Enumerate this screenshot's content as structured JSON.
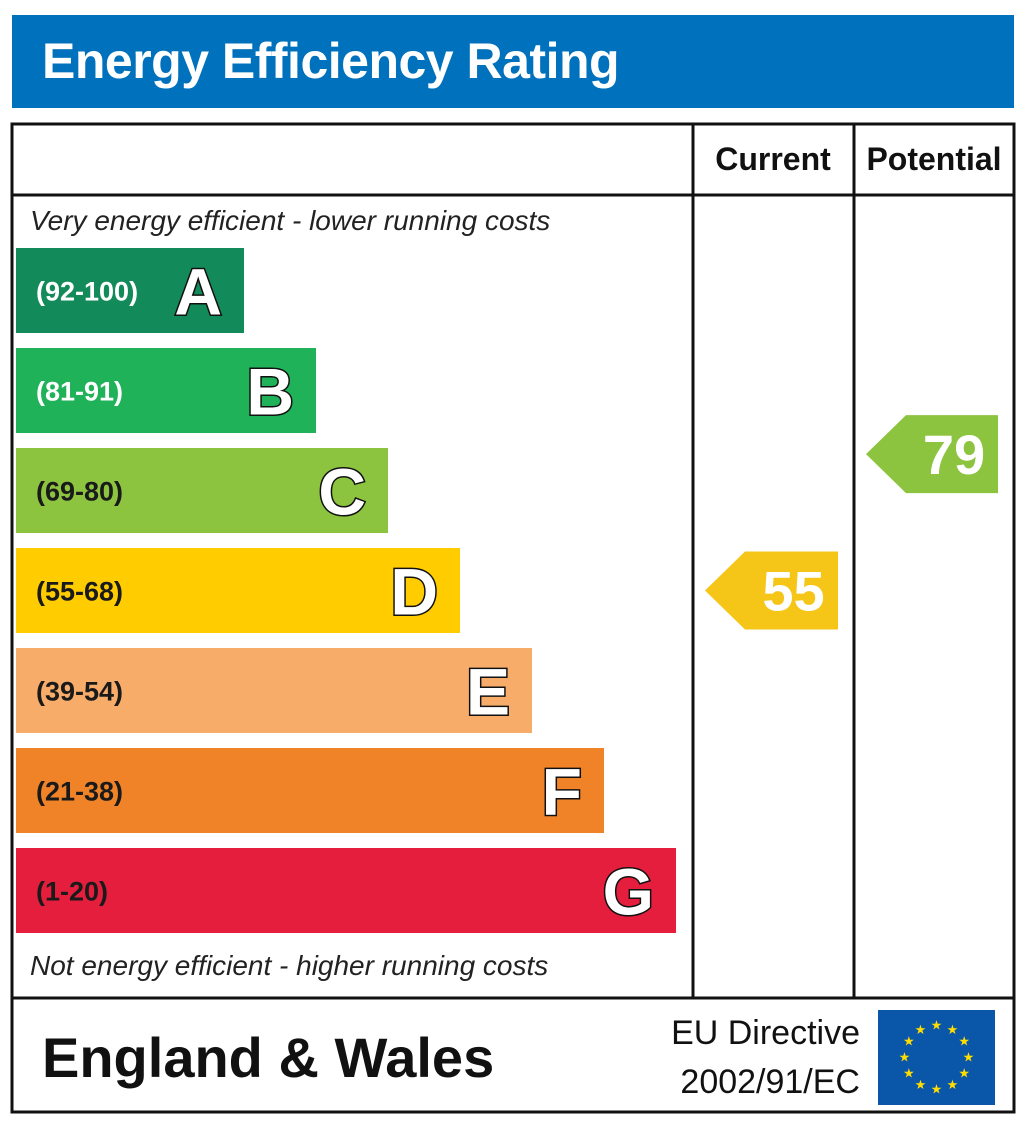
{
  "header": {
    "title": "Energy Efficiency Rating"
  },
  "columns": {
    "current": "Current",
    "potential": "Potential"
  },
  "notes": {
    "top": "Very energy efficient - lower running costs",
    "bottom": "Not energy efficient - higher running costs"
  },
  "footer": {
    "region": "England & Wales",
    "directive_line1": "EU Directive",
    "directive_line2": "2002/91/EC"
  },
  "colors": {
    "header_bg": "#0071bc",
    "eu_flag_bg": "#0a56a8",
    "eu_star": "#ffdd00"
  },
  "chart_data": {
    "type": "bar",
    "bands": [
      {
        "letter": "A",
        "range": "(92-100)",
        "min": 92,
        "max": 100,
        "color": "#138a5a",
        "range_text_color": "#ffffff"
      },
      {
        "letter": "B",
        "range": "(81-91)",
        "min": 81,
        "max": 91,
        "color": "#1fb259",
        "range_text_color": "#ffffff"
      },
      {
        "letter": "C",
        "range": "(69-80)",
        "min": 69,
        "max": 80,
        "color": "#8cc43f",
        "range_text_color": "#1a1a1a"
      },
      {
        "letter": "D",
        "range": "(55-68)",
        "min": 55,
        "max": 68,
        "color": "#ffcc00",
        "range_text_color": "#1a1a1a"
      },
      {
        "letter": "E",
        "range": "(39-54)",
        "min": 39,
        "max": 54,
        "color": "#f8ac6a",
        "range_text_color": "#1a1a1a"
      },
      {
        "letter": "F",
        "range": "(21-38)",
        "min": 21,
        "max": 38,
        "color": "#f08228",
        "range_text_color": "#1a1a1a"
      },
      {
        "letter": "G",
        "range": "(1-20)",
        "min": 1,
        "max": 20,
        "color": "#e41e3c",
        "range_text_color": "#1a1a1a"
      }
    ],
    "current": {
      "value": 55,
      "band": "D",
      "color": "#f5c518"
    },
    "potential": {
      "value": 79,
      "band": "C",
      "color": "#8cc43f"
    }
  }
}
